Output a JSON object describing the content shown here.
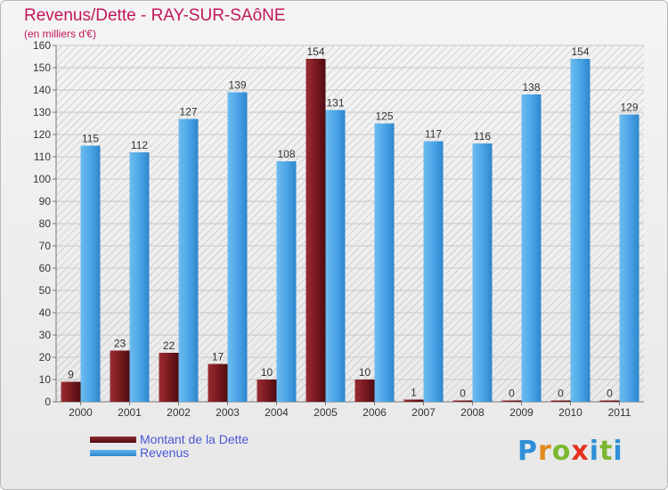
{
  "title": "Revenus/Dette - RAY-SUR-SAôNE",
  "subtitle": "(en milliers d'€)",
  "legend": {
    "debt_label": "Montant de la Dette",
    "revenue_label": "Revenus"
  },
  "logo": {
    "p": "P",
    "r": "r",
    "o": "o",
    "x": "x",
    "i": "i",
    "t": "t",
    "i2": "i"
  },
  "colors": {
    "debt": "#7a1a1f",
    "revenue": "#4aa3e6",
    "title": "#c2185b",
    "legend_text": "#4a57d6"
  },
  "chart_data": {
    "type": "bar",
    "categories": [
      "2000",
      "2001",
      "2002",
      "2003",
      "2004",
      "2005",
      "2006",
      "2007",
      "2008",
      "2009",
      "2010",
      "2011"
    ],
    "series": [
      {
        "name": "Montant de la Dette",
        "values": [
          9,
          23,
          22,
          17,
          10,
          154,
          10,
          1,
          0,
          0,
          0,
          0
        ]
      },
      {
        "name": "Revenus",
        "values": [
          115,
          112,
          127,
          139,
          108,
          131,
          125,
          117,
          116,
          138,
          154,
          129
        ]
      }
    ],
    "yticks": [
      0,
      10,
      20,
      30,
      40,
      50,
      60,
      70,
      80,
      90,
      100,
      110,
      120,
      130,
      140,
      150,
      160
    ],
    "ylim": [
      0,
      160
    ],
    "grid": true,
    "legend_position": "bottom-left"
  }
}
